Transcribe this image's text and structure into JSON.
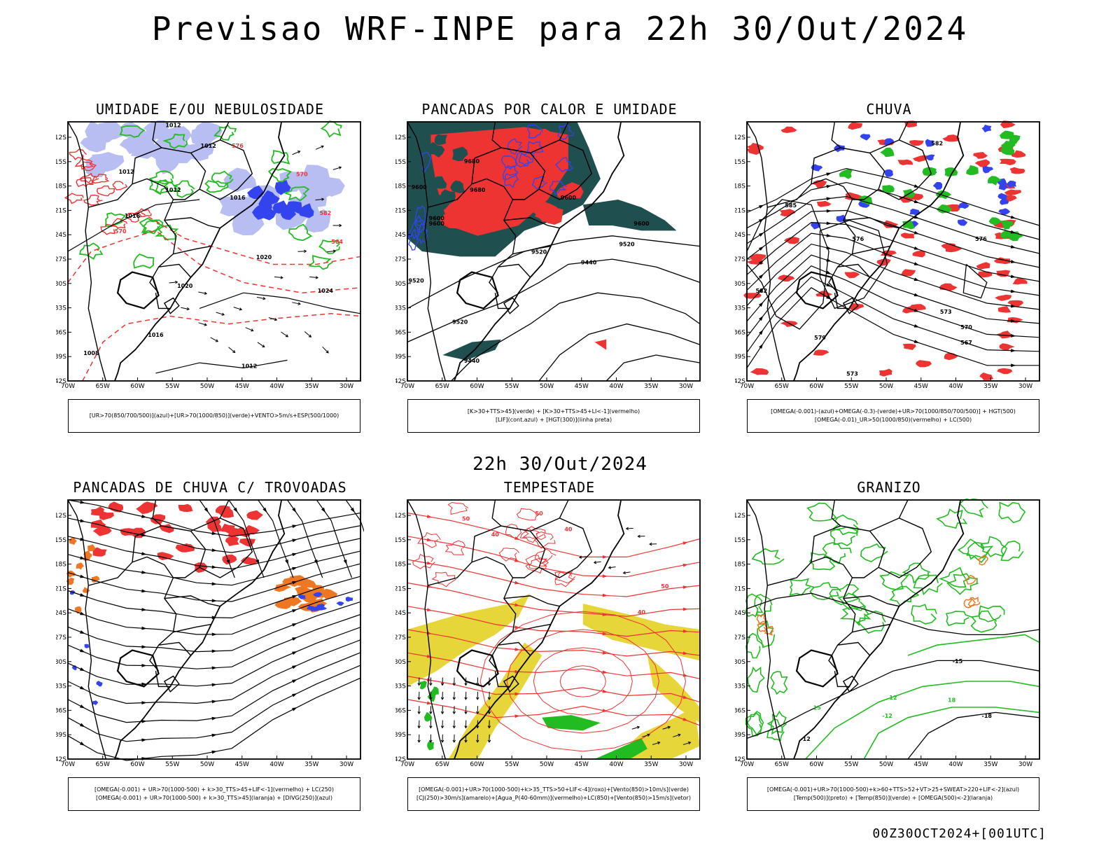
{
  "title": "Previsao WRF-INPE  para 22h 30/Out/2024",
  "mid_title": "22h 30/Out/2024",
  "footer": "00Z30OCT2024+[001UTC]",
  "axes": {
    "lat_labels": [
      "12S",
      "15S",
      "18S",
      "21S",
      "24S",
      "27S",
      "30S",
      "33S",
      "36S",
      "39S",
      "42S"
    ],
    "lon_labels": [
      "70W",
      "65W",
      "60W",
      "55W",
      "50W",
      "45W",
      "40W",
      "35W",
      "30W"
    ]
  },
  "colors": {
    "blue": "#3344ee",
    "green": "#22bb22",
    "red": "#ee3333",
    "orange": "#ee7722",
    "lavender": "#b8bdf2",
    "darkteal": "#1f4f4f",
    "yellow": "#e6d63a"
  },
  "panels": [
    {
      "title": "UMIDADE E/OU NEBULOSIDADE",
      "legend": [
        "[UR>70(850/700/500)](azul)+[UR>70(1000/850)](verde)+VENTO>5m/s+ESP(500/1000)"
      ],
      "contour_labels": [
        "1012",
        "1012",
        "1012",
        "1012",
        "1016",
        "1016",
        "1020",
        "1020",
        "1024",
        "1016",
        "1008",
        "1012",
        "576",
        "570",
        "582",
        "570",
        "564"
      ]
    },
    {
      "title": "PANCADAS POR CALOR E UMIDADE",
      "legend": [
        "[K>30+TTS>45](verde)  +  [K>30+TTS>45+LI<-1](vermelho)",
        "[LIF](cont.azul)  +  [HGT(300)](linha preta)"
      ],
      "contour_labels": [
        "9680",
        "9600",
        "9680",
        "9600",
        "9600",
        "9520",
        "9520",
        "9440",
        "9600",
        "9520",
        "9520",
        "9440",
        "9600"
      ]
    },
    {
      "title": "CHUVA",
      "legend": [
        "[OMEGA(-0.001)-(azul)+OMEGA(-0.3)-(verde)+UR>70(1000/850/700/500)] + HGT(500)",
        "[OMEGA(-0.01)_UR>50(1000/850)(vermelho) + LC(500)"
      ],
      "contour_labels": [
        "582",
        "576",
        "573",
        "570",
        "567",
        "585",
        "576",
        "582",
        "579",
        "573"
      ]
    },
    {
      "title": "PANCADAS DE CHUVA C/ TROVOADAS",
      "legend": [
        "[OMEGA(-0.001) + UR>70(1000-500) + k>30_TTS>45+LIF<-1](vermelho) + LC(250)",
        "[OMEGA(-0.001) + UR>70(1000-500) + k>30_TTS>45](laranja) + [DIVG(250)](azul)"
      ],
      "contour_labels": []
    },
    {
      "title": "TEMPESTADE",
      "legend": [
        "[OMEGA(-0.001)+UR>70(1000-500)+k>35_TTS>50+LIF<-4](roxo)+[Vento(850)>10m/s](verde)",
        "[CJ(250)>30m/s](amarelo)+[Agua_P(40-60mm)](vermelho)+LC(850)+[Vento(850)>15m/s](vetor)"
      ],
      "contour_labels": [
        "50",
        "40",
        "50",
        "40",
        "50",
        "40"
      ]
    },
    {
      "title": "GRANIZO",
      "legend": [
        "[OMEGA(-0.001)+UR>70(1000-500)+k>60+TTS>52+VT>25+SWEAT>220+LIF<-2](azul)",
        "[Temp(500)](preto) + [Temp(850)](verde) + [OMEGA(500)<-2](laranja)"
      ],
      "contour_labels": [
        "-12",
        "-15",
        "-18",
        "-12",
        "15",
        "12",
        "18"
      ]
    }
  ]
}
